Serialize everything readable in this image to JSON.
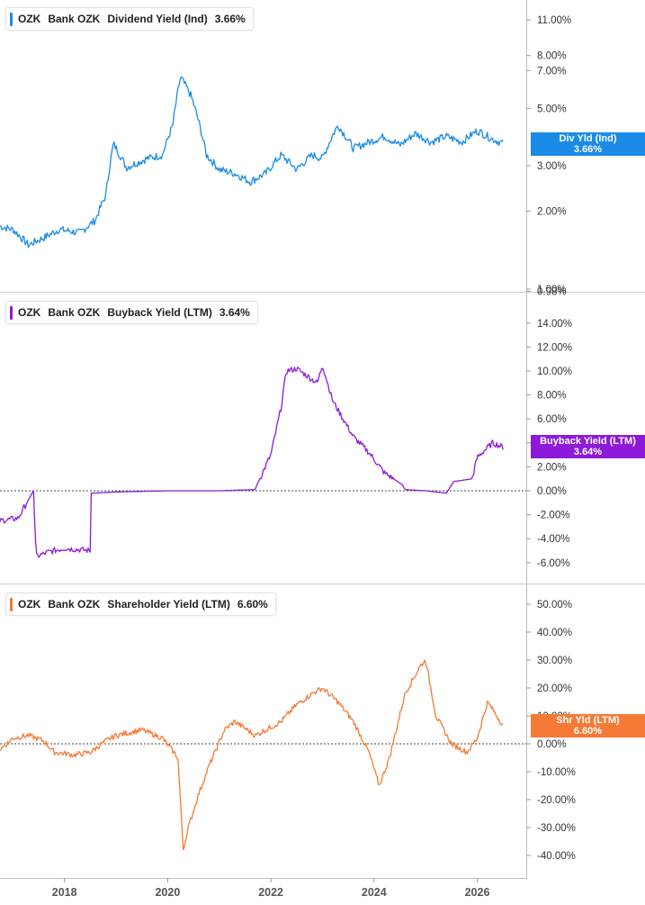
{
  "chart_data": [
    {
      "type": "line",
      "ticker": "OZK",
      "company": "Bank OZK",
      "metric": "Dividend Yield (Ind)",
      "current": "3.66%",
      "badge_label": "Div Yld (Ind)",
      "color": "#1a8be6",
      "scale": "log",
      "yticks": [
        "11.00%",
        "8.00%",
        "7.00%",
        "5.00%",
        "3.00%",
        "2.00%",
        "1.00%",
        "0.98%"
      ],
      "ytick_values": [
        11,
        8,
        7,
        5,
        3,
        2,
        1,
        0.98
      ],
      "x": [
        2016.75,
        2017.0,
        2017.3,
        2017.6,
        2017.9,
        2018.3,
        2018.6,
        2018.8,
        2018.95,
        2019.2,
        2019.6,
        2019.9,
        2020.1,
        2020.25,
        2020.45,
        2020.75,
        2021.0,
        2021.3,
        2021.6,
        2021.9,
        2022.2,
        2022.5,
        2022.8,
        2023.0,
        2023.3,
        2023.6,
        2023.9,
        2024.2,
        2024.5,
        2024.8,
        2025.1,
        2025.4,
        2025.7,
        2026.0,
        2026.3,
        2026.5
      ],
      "values": [
        1.75,
        1.7,
        1.48,
        1.58,
        1.7,
        1.65,
        1.85,
        2.3,
        3.65,
        2.95,
        3.2,
        3.3,
        4.3,
        6.6,
        5.6,
        3.3,
        2.9,
        2.8,
        2.6,
        2.8,
        3.3,
        2.9,
        3.3,
        3.2,
        4.3,
        3.5,
        3.7,
        3.9,
        3.6,
        4.0,
        3.7,
        3.9,
        3.7,
        4.1,
        3.8,
        3.66
      ]
    },
    {
      "type": "line",
      "ticker": "OZK",
      "company": "Bank OZK",
      "metric": "Buyback Yield (LTM)",
      "current": "3.64%",
      "badge_label": "Buyback Yield (LTM)",
      "color": "#8c1ad8",
      "yticks": [
        "14.00%",
        "12.00%",
        "10.00%",
        "8.00%",
        "6.00%",
        "4.00%",
        "2.00%",
        "0.00%",
        "-2.00%",
        "-4.00%",
        "-6.00%"
      ],
      "ytick_values": [
        14,
        12,
        10,
        8,
        6,
        4,
        2,
        0,
        -2,
        -4,
        -6
      ],
      "x": [
        2016.75,
        2017.1,
        2017.4,
        2017.45,
        2017.7,
        2018.0,
        2018.5,
        2018.51,
        2019.0,
        2020.0,
        2021.0,
        2021.7,
        2021.71,
        2022.0,
        2022.2,
        2022.3,
        2022.5,
        2022.9,
        2023.0,
        2023.2,
        2023.4,
        2023.6,
        2023.9,
        2024.2,
        2024.55,
        2024.6,
        2025.0,
        2025.4,
        2025.55,
        2025.6,
        2025.9,
        2026.0,
        2026.3,
        2026.5
      ],
      "values": [
        -2.5,
        -2.3,
        0,
        -5.5,
        -5.1,
        -4.8,
        -5.0,
        -0.2,
        -0.1,
        0.0,
        0.0,
        0.1,
        0.3,
        3.0,
        7.0,
        10.0,
        10.2,
        9.0,
        10.5,
        7.5,
        6.0,
        4.5,
        3.2,
        1.5,
        0.5,
        0.1,
        0.0,
        -0.2,
        0.8,
        0.8,
        1.0,
        2.8,
        4.0,
        3.64
      ]
    },
    {
      "type": "line",
      "ticker": "OZK",
      "company": "Bank OZK",
      "metric": "Shareholder Yield (LTM)",
      "current": "6.60%",
      "badge_label": "Shr Yld (LTM)",
      "color": "#f47a36",
      "yticks": [
        "50.00%",
        "40.00%",
        "30.00%",
        "20.00%",
        "10.00%",
        "0.00%",
        "-10.00%",
        "-20.00%",
        "-30.00%",
        "-40.00%"
      ],
      "ytick_values": [
        50,
        40,
        30,
        20,
        10,
        0,
        -10,
        -20,
        -30,
        -40
      ],
      "x": [
        2016.75,
        2017.0,
        2017.3,
        2017.6,
        2017.8,
        2018.2,
        2018.5,
        2018.8,
        2019.0,
        2019.5,
        2019.9,
        2020.2,
        2020.3,
        2020.4,
        2020.6,
        2020.8,
        2021.1,
        2021.3,
        2021.7,
        2021.9,
        2022.2,
        2022.5,
        2022.8,
        2023.0,
        2023.3,
        2023.6,
        2023.9,
        2024.1,
        2024.3,
        2024.6,
        2024.9,
        2025.0,
        2025.2,
        2025.5,
        2025.8,
        2026.0,
        2026.2,
        2026.5
      ],
      "values": [
        -2,
        2,
        3,
        1,
        -3,
        -4,
        -3,
        1,
        3,
        5,
        2,
        -5,
        -38,
        -30,
        -18,
        -8,
        5,
        8,
        3,
        5,
        8,
        14,
        18,
        20,
        15,
        8,
        -3,
        -15,
        -5,
        18,
        28,
        30,
        10,
        0,
        -3,
        2,
        15,
        6.6
      ]
    }
  ],
  "x_axis": {
    "ticks": [
      "2018",
      "2020",
      "2022",
      "2024",
      "2026"
    ],
    "tick_values": [
      2018,
      2020,
      2022,
      2024,
      2026
    ]
  }
}
